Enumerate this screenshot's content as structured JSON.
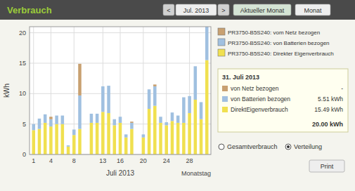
{
  "chart_data": {
    "type": "bar",
    "stacked": true,
    "grid": true,
    "title": "Verbrauch",
    "xlabel": "Juli 2013",
    "ylabel": "kWh",
    "x": [
      1,
      2,
      3,
      4,
      5,
      6,
      7,
      8,
      9,
      10,
      11,
      12,
      13,
      14,
      15,
      16,
      17,
      18,
      19,
      20,
      21,
      22,
      23,
      24,
      25,
      26,
      27,
      28,
      29,
      30,
      31
    ],
    "xlim": [
      0.3,
      31.7
    ],
    "xticks": [
      1,
      4,
      8,
      13,
      16,
      20,
      24,
      28
    ],
    "ylim": [
      0,
      21
    ],
    "yticks": [
      0,
      5,
      10,
      15,
      20
    ],
    "series": [
      {
        "name": "PR3750-B5S240: Direkter Eigenverbrauch",
        "color": "#f0e050",
        "values": [
          4.0,
          4.2,
          5.2,
          4.6,
          5.0,
          5.0,
          1.3,
          3.2,
          4.2,
          0,
          5.2,
          5.2,
          7.0,
          6.8,
          4.8,
          5.2,
          2.8,
          4.2,
          0,
          2.8,
          7.5,
          8.0,
          5.2,
          4.8,
          5.5,
          5.2,
          5.2,
          6.8,
          9.0,
          5.8,
          15.5
        ]
      },
      {
        "name": "PR3750-B5S240: von Batterien bezogen",
        "color": "#a0c0e0",
        "values": [
          1.0,
          1.7,
          1.4,
          1.2,
          1.4,
          1.4,
          0.2,
          0.9,
          5.5,
          0,
          1.5,
          1.5,
          4.2,
          4.5,
          1.0,
          1.0,
          0.5,
          1.0,
          0,
          0.5,
          3.2,
          3.2,
          1.0,
          0.5,
          1.4,
          1.2,
          4.2,
          2.8,
          5.5,
          2.8,
          5.5
        ]
      },
      {
        "name": "PR3750-B5S240: vom Netz bezogen",
        "color": "#c8a070",
        "values": [
          0,
          0,
          0,
          0.4,
          0,
          0,
          0,
          0,
          5.2,
          0,
          0,
          0,
          0,
          0,
          0,
          0,
          0,
          0.2,
          0,
          0,
          0,
          0.3,
          0,
          0,
          0,
          0,
          0,
          0,
          0,
          0,
          0
        ]
      }
    ],
    "annotations": [
      "<",
      "Jul. 2013",
      ">",
      "Aktueller Monat",
      "Monat",
      "Monatstag",
      "31. Juli 2013",
      "von Netz bezogen",
      "-",
      "von Batterien bezogen",
      "5.51 kWh",
      "DirektEigenverbrauch",
      "15.49 kWh",
      "20.00 kWh",
      "Gesamtverbrauch",
      "Verteilung",
      "Print"
    ]
  }
}
